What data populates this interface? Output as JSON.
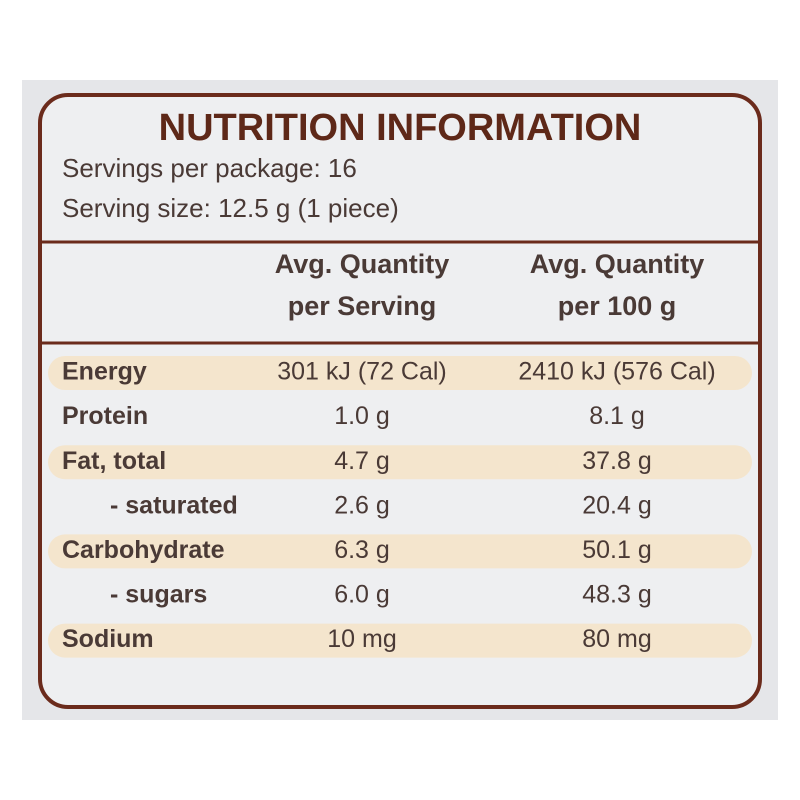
{
  "header": {
    "title": "NUTRITION INFORMATION",
    "servings": "Servings per package: 16",
    "serving_size": "Serving size: 12.5 g (1 piece)"
  },
  "table": {
    "columns": [
      [
        "Avg. Quantity",
        "per Serving"
      ],
      [
        "Avg. Quantity",
        "per 100 g"
      ]
    ],
    "rows": [
      [
        "Energy",
        "301 kJ (72 Cal)",
        "2410 kJ (576 Cal)"
      ],
      [
        "Protein",
        "1.0 g",
        "8.1 g"
      ],
      [
        "Fat, total",
        "4.7 g",
        "37.8 g"
      ],
      [
        "- saturated",
        "2.6 g",
        "20.4 g"
      ],
      [
        "Carbohydrate",
        "6.3 g",
        "50.1 g"
      ],
      [
        "- sugars",
        "6.0 g",
        "48.3 g"
      ],
      [
        "Sodium",
        "10 mg",
        "80 mg"
      ]
    ]
  }
}
